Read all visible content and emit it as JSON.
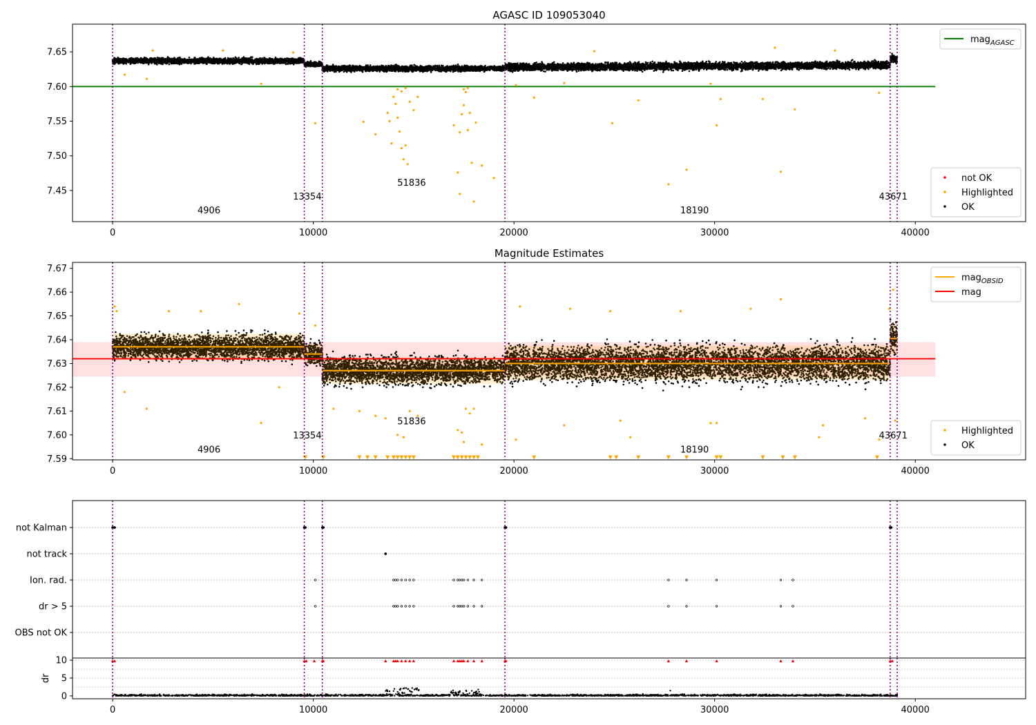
{
  "chart_data": [
    {
      "type": "scatter",
      "title": "AGASC ID 109053040",
      "xlim": [
        -2000,
        45500
      ],
      "ylim": [
        7.405,
        7.69
      ],
      "x_ticks": [
        "0",
        "10000",
        "20000",
        "30000",
        "40000"
      ],
      "y_ticks": [
        "7.45",
        "7.50",
        "7.55",
        "7.60",
        "7.65"
      ],
      "y_tick_values": [
        7.45,
        7.5,
        7.55,
        7.6,
        7.65
      ],
      "obsid_boundaries": [
        0,
        9550,
        10450,
        19550,
        38750,
        39100
      ],
      "obsid_labels": [
        {
          "text": "4906",
          "x": 4800,
          "y": 7.417
        },
        {
          "text": "13354",
          "x": 9700,
          "y": 7.437
        },
        {
          "text": "51836",
          "x": 14900,
          "y": 7.457
        },
        {
          "text": "18190",
          "x": 29000,
          "y": 7.417
        },
        {
          "text": "43671",
          "x": 38900,
          "y": 7.437
        }
      ],
      "reference_line": {
        "name": "mag_AGASC",
        "y": 7.6,
        "x": [
          -2000,
          41000
        ],
        "color": "#008000"
      },
      "series": [
        {
          "name": "OK",
          "color": "#000000",
          "segments": [
            {
              "x": [
                0,
                9550
              ],
              "y": [
                7.637,
                7.637
              ],
              "spread": 0.006
            },
            {
              "x": [
                9550,
                10450
              ],
              "y": [
                7.632,
                7.632
              ],
              "spread": 0.005
            },
            {
              "x": [
                10450,
                19550
              ],
              "y": [
                7.626,
                7.626
              ],
              "spread": 0.006
            },
            {
              "x": [
                19550,
                38750
              ],
              "y": [
                7.628,
                7.631
              ],
              "spread": 0.008
            },
            {
              "x": [
                38750,
                39100
              ],
              "y": [
                7.64,
                7.64
              ],
              "spread": 0.008
            }
          ]
        },
        {
          "name": "Highlighted",
          "color": "#ffa500",
          "points": [
            [
              600,
              7.617
            ],
            [
              1700,
              7.611
            ],
            [
              7400,
              7.604
            ],
            [
              10100,
              7.547
            ],
            [
              12500,
              7.549
            ],
            [
              13100,
              7.531
            ],
            [
              13700,
              7.562
            ],
            [
              13800,
              7.55
            ],
            [
              13900,
              7.518
            ],
            [
              14000,
              7.585
            ],
            [
              14100,
              7.575
            ],
            [
              14200,
              7.555
            ],
            [
              14300,
              7.535
            ],
            [
              14400,
              7.511
            ],
            [
              14500,
              7.495
            ],
            [
              14600,
              7.515
            ],
            [
              14700,
              7.488
            ],
            [
              14800,
              7.578
            ],
            [
              15000,
              7.566
            ],
            [
              15200,
              7.585
            ],
            [
              14200,
              7.596
            ],
            [
              14600,
              7.598
            ],
            [
              14400,
              7.593
            ],
            [
              17000,
              7.544
            ],
            [
              17200,
              7.476
            ],
            [
              17300,
              7.534
            ],
            [
              17400,
              7.56
            ],
            [
              17500,
              7.573
            ],
            [
              17600,
              7.592
            ],
            [
              17700,
              7.537
            ],
            [
              17800,
              7.562
            ],
            [
              17900,
              7.49
            ],
            [
              18000,
              7.434
            ],
            [
              18100,
              7.548
            ],
            [
              17300,
              7.445
            ],
            [
              18400,
              7.486
            ],
            [
              17500,
              7.596
            ],
            [
              17700,
              7.598
            ],
            [
              19000,
              7.468
            ],
            [
              21000,
              7.584
            ],
            [
              24900,
              7.547
            ],
            [
              26200,
              7.58
            ],
            [
              27700,
              7.459
            ],
            [
              28600,
              7.48
            ],
            [
              30100,
              7.544
            ],
            [
              30300,
              7.582
            ],
            [
              32400,
              7.582
            ],
            [
              33300,
              7.477
            ],
            [
              34000,
              7.567
            ],
            [
              38200,
              7.591
            ],
            [
              20100,
              7.602
            ],
            [
              22500,
              7.605
            ],
            [
              29800,
              7.604
            ],
            [
              2000,
              7.652
            ],
            [
              5500,
              7.652
            ],
            [
              9000,
              7.649
            ],
            [
              24000,
              7.651
            ],
            [
              33000,
              7.656
            ],
            [
              36000,
              7.652
            ]
          ]
        },
        {
          "name": "not OK",
          "color": "#ff0000",
          "points": []
        }
      ],
      "legend": [
        {
          "position": "upper-right",
          "entries": [
            {
              "label": "mag",
              "subscript": "AGASC",
              "kind": "line",
              "color": "#008000"
            }
          ]
        },
        {
          "position": "lower-right",
          "entries": [
            {
              "label": "not OK",
              "kind": "dot",
              "color": "#ff0000"
            },
            {
              "label": "Highlighted",
              "kind": "dot",
              "color": "#ffa500"
            },
            {
              "label": "OK",
              "kind": "dot",
              "color": "#000000"
            }
          ]
        }
      ]
    },
    {
      "type": "scatter",
      "title": "Magnitude Estimates",
      "xlim": [
        -2000,
        45500
      ],
      "ylim": [
        7.5895,
        7.6725
      ],
      "x_ticks": [
        "0",
        "10000",
        "20000",
        "30000",
        "40000"
      ],
      "y_ticks": [
        "7.59",
        "7.60",
        "7.61",
        "7.62",
        "7.63",
        "7.64",
        "7.65",
        "7.66",
        "7.67"
      ],
      "y_tick_values": [
        7.59,
        7.6,
        7.61,
        7.62,
        7.63,
        7.64,
        7.65,
        7.66,
        7.67
      ],
      "obsid_boundaries": [
        0,
        9550,
        10450,
        19550,
        38750,
        39100
      ],
      "obsid_labels": [
        {
          "text": "4906",
          "x": 4800,
          "y": 7.5925
        },
        {
          "text": "13354",
          "x": 9700,
          "y": 7.5985
        },
        {
          "text": "51836",
          "x": 14900,
          "y": 7.6045
        },
        {
          "text": "18190",
          "x": 29000,
          "y": 7.5925
        },
        {
          "text": "43671",
          "x": 38900,
          "y": 7.5985
        }
      ],
      "mag_line": {
        "name": "mag",
        "y": 7.632,
        "band": [
          7.6245,
          7.639
        ],
        "x": [
          -2000,
          41000
        ],
        "color": "#ff0000"
      },
      "obsid_means": {
        "name": "mag_OBSID",
        "color": "#ffa500",
        "segments": [
          {
            "x": [
              0,
              9550
            ],
            "y": 7.637,
            "band": [
              7.6315,
              7.6425
            ]
          },
          {
            "x": [
              9550,
              10450
            ],
            "y": 7.634,
            "band": [
              7.63,
              7.638
            ]
          },
          {
            "x": [
              10450,
              19550
            ],
            "y": 7.627,
            "band": [
              7.6215,
              7.6325
            ]
          },
          {
            "x": [
              19550,
              38750
            ],
            "y": 7.63,
            "band": [
              7.623,
              7.6375
            ]
          },
          {
            "x": [
              38750,
              39100
            ],
            "y": 7.6405,
            "band": [
              7.634,
              7.647
            ]
          }
        ]
      },
      "series": [
        {
          "name": "OK",
          "color": "#000000",
          "segments": [
            {
              "x": [
                0,
                9550
              ],
              "y": [
                7.637,
                7.637
              ],
              "spread": 0.0075
            },
            {
              "x": [
                9550,
                10450
              ],
              "y": [
                7.634,
                7.634
              ],
              "spread": 0.0065
            },
            {
              "x": [
                10450,
                19550
              ],
              "y": [
                7.627,
                7.627
              ],
              "spread": 0.0085
            },
            {
              "x": [
                19550,
                38750
              ],
              "y": [
                7.63,
                7.63
              ],
              "spread": 0.011
            },
            {
              "x": [
                38750,
                39100
              ],
              "y": [
                7.641,
                7.641
              ],
              "spread": 0.009
            }
          ]
        },
        {
          "name": "Highlighted",
          "color": "#ffa500",
          "points": [
            [
              100,
              7.654
            ],
            [
              200,
              7.652
            ],
            [
              600,
              7.618
            ],
            [
              1700,
              7.611
            ],
            [
              2800,
              7.652
            ],
            [
              4400,
              7.652
            ],
            [
              6300,
              7.655
            ],
            [
              7400,
              7.605
            ],
            [
              8300,
              7.62
            ],
            [
              9300,
              7.651
            ],
            [
              10100,
              7.646
            ],
            [
              11000,
              7.611
            ],
            [
              12300,
              7.61
            ],
            [
              13100,
              7.608
            ],
            [
              13600,
              7.607
            ],
            [
              14200,
              7.6
            ],
            [
              14500,
              7.599
            ],
            [
              14800,
              7.61
            ],
            [
              15200,
              7.608
            ],
            [
              17200,
              7.602
            ],
            [
              17400,
              7.601
            ],
            [
              17500,
              7.597
            ],
            [
              17600,
              7.611
            ],
            [
              17800,
              7.609
            ],
            [
              18000,
              7.611
            ],
            [
              18400,
              7.596
            ],
            [
              20100,
              7.598
            ],
            [
              20300,
              7.654
            ],
            [
              22500,
              7.604
            ],
            [
              22800,
              7.653
            ],
            [
              24800,
              7.652
            ],
            [
              25300,
              7.606
            ],
            [
              25800,
              7.599
            ],
            [
              28300,
              7.652
            ],
            [
              29800,
              7.605
            ],
            [
              30100,
              7.605
            ],
            [
              31800,
              7.653
            ],
            [
              33300,
              7.657
            ],
            [
              35200,
              7.599
            ],
            [
              35400,
              7.604
            ],
            [
              37500,
              7.607
            ],
            [
              38200,
              7.598
            ],
            [
              38700,
              7.653
            ],
            [
              38900,
              7.661
            ],
            [
              39000,
              7.606
            ]
          ]
        },
        {
          "name": "Highlighted (below range)",
          "color": "#ffa500",
          "marker": "triangle-down",
          "y": 7.5905,
          "x": [
            9600,
            10500,
            12300,
            12700,
            13100,
            13700,
            14000,
            14200,
            14400,
            14600,
            14800,
            15000,
            17000,
            17200,
            17400,
            17600,
            17800,
            18000,
            18200,
            21000,
            24800,
            25100,
            26200,
            27700,
            28600,
            30100,
            30300,
            32400,
            33400,
            34000,
            38100
          ]
        }
      ],
      "legend": [
        {
          "position": "upper-right",
          "entries": [
            {
              "label": "mag",
              "subscript": "OBSID",
              "kind": "line",
              "color": "#ffa500"
            },
            {
              "label": "mag",
              "kind": "line",
              "color": "#ff0000"
            }
          ]
        },
        {
          "position": "lower-right",
          "entries": [
            {
              "label": "Highlighted",
              "kind": "dot",
              "color": "#ffa500"
            },
            {
              "label": "OK",
              "kind": "dot",
              "color": "#000000"
            }
          ]
        }
      ]
    },
    {
      "type": "scatter",
      "title": "",
      "xlim": [
        -2000,
        45500
      ],
      "categories": [
        "not Kalman",
        "not track",
        "Ion. rad.",
        "dr > 5",
        "OBS not OK"
      ],
      "obsid_boundaries": [
        0,
        9550,
        10450,
        19550,
        38750,
        39100
      ],
      "flag_points": {
        "not Kalman": [
          0,
          100,
          9550,
          9600,
          10450,
          10500,
          19550,
          19600,
          38750,
          38800
        ],
        "not track": [
          13600
        ],
        "Ion. rad.": [
          10100,
          14000,
          14100,
          14200,
          14400,
          14600,
          14800,
          15000,
          17000,
          17200,
          17300,
          17400,
          17500,
          17700,
          18000,
          18400,
          27700,
          28600,
          30100,
          33300,
          33900
        ],
        "dr > 5": [
          10100,
          14000,
          14100,
          14200,
          14400,
          14600,
          14800,
          15000,
          17000,
          17200,
          17300,
          17400,
          17500,
          17700,
          18000,
          18400,
          27700,
          28600,
          30100,
          33300,
          33900
        ],
        "OBS not OK": []
      }
    },
    {
      "type": "scatter",
      "title": "",
      "ylabel": "dr",
      "xlim": [
        -2000,
        45500
      ],
      "ylim": [
        -0.8,
        10.6
      ],
      "x_ticks": [
        "0",
        "10000",
        "20000",
        "30000",
        "40000"
      ],
      "y_ticks": [
        "0",
        "5",
        "10"
      ],
      "y_tick_values": [
        0,
        5,
        10
      ],
      "obsid_boundaries": [
        0,
        9550,
        10450,
        19550,
        38750,
        39100
      ],
      "threshold_marker_y": 9.8,
      "threshold_x": [
        0,
        100,
        9550,
        9650,
        10050,
        10450,
        10500,
        13600,
        14000,
        14100,
        14200,
        14400,
        14600,
        14800,
        15000,
        17000,
        17200,
        17300,
        17400,
        17500,
        17700,
        18000,
        18400,
        19550,
        19600,
        27700,
        28600,
        30100,
        33300,
        33900,
        38750,
        38850
      ],
      "bumps": [
        {
          "x": [
            13600,
            15400
          ],
          "max": 2.2
        },
        {
          "x": [
            16800,
            18300
          ],
          "max": 1.8
        },
        {
          "x": [
            27600,
            27800
          ],
          "max": 1.8
        }
      ]
    }
  ]
}
